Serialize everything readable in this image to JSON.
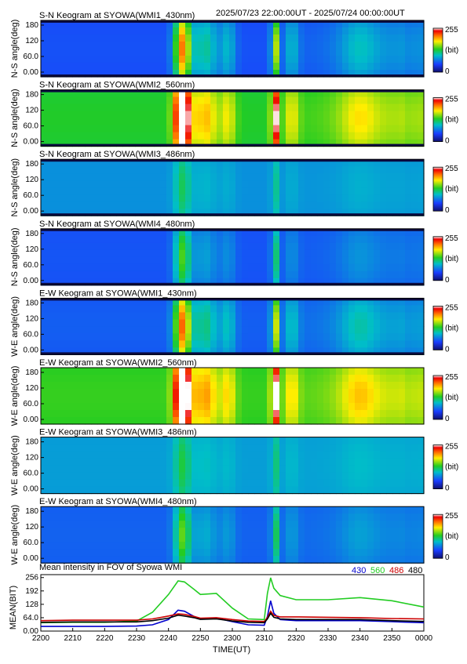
{
  "header": {
    "date_range": "2025/07/23 22:00:00UT - 2025/07/24 00:00:00UT"
  },
  "keograms": [
    {
      "title": "S-N Keogram at SYOWA(WMI1_430nm)",
      "ylabel": "N-S angle(deg)",
      "yticks": [
        "180",
        "120",
        "60.0",
        "0.00"
      ],
      "colorbar": {
        "max": "255",
        "unit": "(bit)",
        "min": "0"
      },
      "baseline": 0.18,
      "scale": 0.55,
      "edge": "dark"
    },
    {
      "title": "S-N Keogram at SYOWA(WMI2_560nm)",
      "ylabel": "N-S angle(deg)",
      "yticks": [
        "180",
        "120",
        "60.0",
        "0.00"
      ],
      "colorbar": {
        "max": "255",
        "unit": "(bit)",
        "min": "0"
      },
      "baseline": 0.48,
      "scale": 0.62,
      "edge": "dark"
    },
    {
      "title": "S-N Keogram at SYOWA(WMI3_486nm)",
      "ylabel": "N-S angle(deg)",
      "yticks": [
        "180",
        "120",
        "60.0",
        "0.00"
      ],
      "colorbar": {
        "max": "255",
        "unit": "(bit)",
        "min": "0"
      },
      "baseline": 0.3,
      "scale": 0.15,
      "edge": "dark"
    },
    {
      "title": "S-N Keogram at SYOWA(WMI4_480nm)",
      "ylabel": "N-S angle(deg)",
      "yticks": [
        "180",
        "120",
        "60.0",
        "0.00"
      ],
      "colorbar": {
        "max": "255",
        "unit": "(bit)",
        "min": "0"
      },
      "baseline": 0.2,
      "scale": 0.3,
      "edge": "dark"
    },
    {
      "title": "E-W Keogram at SYOWA(WMI1_430nm)",
      "ylabel": "W-E angle(deg)",
      "yticks": [
        "180",
        "120",
        "60.0",
        "0.00"
      ],
      "colorbar": {
        "max": "255",
        "unit": "(bit)",
        "min": "0"
      },
      "baseline": 0.2,
      "scale": 0.55,
      "edge": "dark"
    },
    {
      "title": "E-W Keogram at SYOWA(WMI2_560nm)",
      "ylabel": "W-E angle(deg)",
      "yticks": [
        "180",
        "120",
        "60.0",
        "0.00"
      ],
      "colorbar": {
        "max": "255",
        "unit": "(bit)",
        "min": "0"
      },
      "baseline": 0.5,
      "scale": 0.65,
      "edge": "none"
    },
    {
      "title": "E-W Keogram at SYOWA(WMI3_486nm)",
      "ylabel": "W-E angle(deg)",
      "yticks": [
        "180",
        "120",
        "60.0",
        "0.00"
      ],
      "colorbar": {
        "max": "255",
        "unit": "(bit)",
        "min": "0"
      },
      "baseline": 0.32,
      "scale": 0.15,
      "edge": "none"
    },
    {
      "title": "E-W Keogram at SYOWA(WMI4_480nm)",
      "ylabel": "W-E angle(deg)",
      "yticks": [
        "180",
        "120",
        "60.0",
        "0.00"
      ],
      "colorbar": {
        "max": "255",
        "unit": "(bit)",
        "min": "0"
      },
      "baseline": 0.22,
      "scale": 0.3,
      "edge": "none"
    }
  ],
  "chart_data": {
    "type": "line",
    "title": "Mean intensity in FOV of Syowa WMI",
    "xlabel": "TIME(UT)",
    "ylabel": "MEAN(BIT)",
    "x_ticks": [
      "2200",
      "2210",
      "2220",
      "2230",
      "2240",
      "2250",
      "2300",
      "2310",
      "2320",
      "2330",
      "2340",
      "2350",
      "0000"
    ],
    "y_ticks": [
      "256",
      "192",
      "128",
      "64.0",
      "0.00"
    ],
    "ylim": [
      0,
      270
    ],
    "x": [
      "2200",
      "2210",
      "2220",
      "2230",
      "2235",
      "2240",
      "2243",
      "2245",
      "2248",
      "2250",
      "2255",
      "2300",
      "2305",
      "2310",
      "2311",
      "2312",
      "2313",
      "2315",
      "2320",
      "2330",
      "2340",
      "2350",
      "0000"
    ],
    "series": [
      {
        "name": "430",
        "color": "#0000cc",
        "values": [
          22,
          22,
          22,
          24,
          30,
          55,
          100,
          95,
          70,
          58,
          62,
          45,
          30,
          28,
          70,
          145,
          85,
          55,
          50,
          50,
          50,
          45,
          40
        ]
      },
      {
        "name": "560",
        "color": "#22cc22",
        "values": [
          40,
          42,
          42,
          48,
          90,
          175,
          240,
          235,
          200,
          175,
          180,
          110,
          58,
          55,
          180,
          255,
          205,
          170,
          150,
          150,
          160,
          145,
          115
        ]
      },
      {
        "name": "486",
        "color": "#cc0000",
        "values": [
          50,
          52,
          52,
          52,
          58,
          72,
          82,
          80,
          70,
          62,
          64,
          55,
          48,
          46,
          65,
          95,
          75,
          68,
          68,
          66,
          64,
          60,
          58
        ]
      },
      {
        "name": "480",
        "color": "#000000",
        "values": [
          42,
          44,
          44,
          44,
          50,
          62,
          76,
          72,
          64,
          56,
          58,
          48,
          42,
          40,
          58,
          85,
          66,
          58,
          55,
          55,
          55,
          50,
          46
        ]
      }
    ]
  }
}
